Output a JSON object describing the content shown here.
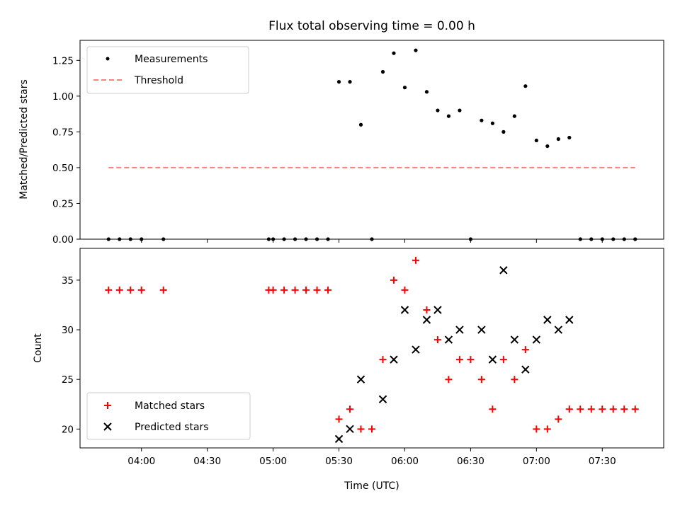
{
  "chart_data": [
    {
      "type": "scatter",
      "title": "Flux total observing time = 0.00 h",
      "ylabel": "Matched/Predicted stars",
      "xlabel": "",
      "xlim": [
        "03:32",
        "07:58"
      ],
      "ylim": [
        0,
        1.39
      ],
      "yticks": [
        "0.00",
        "0.25",
        "0.50",
        "0.75",
        "1.00",
        "1.25"
      ],
      "grid": false,
      "legend_position": "top-left",
      "series": [
        {
          "name": "Measurements",
          "marker": "dot",
          "color": "#000000",
          "points": [
            [
              "03:45",
              0
            ],
            [
              "03:50",
              0
            ],
            [
              "03:55",
              0
            ],
            [
              "04:00",
              0
            ],
            [
              "04:10",
              0
            ],
            [
              "04:58",
              0
            ],
            [
              "05:00",
              0
            ],
            [
              "05:05",
              0
            ],
            [
              "05:10",
              0
            ],
            [
              "05:15",
              0
            ],
            [
              "05:20",
              0
            ],
            [
              "05:25",
              0
            ],
            [
              "05:30",
              1.1
            ],
            [
              "05:35",
              1.1
            ],
            [
              "05:40",
              0.8
            ],
            [
              "05:45",
              0
            ],
            [
              "05:50",
              1.17
            ],
            [
              "05:55",
              1.3
            ],
            [
              "06:00",
              1.06
            ],
            [
              "06:05",
              1.32
            ],
            [
              "06:10",
              1.03
            ],
            [
              "06:15",
              0.9
            ],
            [
              "06:20",
              0.86
            ],
            [
              "06:25",
              0.9
            ],
            [
              "06:30",
              0
            ],
            [
              "06:35",
              0.83
            ],
            [
              "06:40",
              0.81
            ],
            [
              "06:45",
              0.75
            ],
            [
              "06:50",
              0.86
            ],
            [
              "06:55",
              1.07
            ],
            [
              "07:00",
              0.69
            ],
            [
              "07:05",
              0.65
            ],
            [
              "07:10",
              0.7
            ],
            [
              "07:15",
              0.71
            ],
            [
              "07:20",
              0
            ],
            [
              "07:25",
              0
            ],
            [
              "07:30",
              0
            ],
            [
              "07:35",
              0
            ],
            [
              "07:40",
              0
            ],
            [
              "07:45",
              0
            ]
          ]
        },
        {
          "name": "Threshold",
          "marker": "dashed-line",
          "color": "#ff7f7f",
          "points": [
            [
              "03:45",
              0.5
            ],
            [
              "07:45",
              0.5
            ]
          ]
        }
      ]
    },
    {
      "type": "scatter",
      "title": "",
      "ylabel": "Count",
      "xlabel": "Time (UTC)",
      "xlim": [
        "03:32",
        "07:58"
      ],
      "ylim": [
        18.1,
        38.2
      ],
      "yticks": [
        "20",
        "25",
        "30",
        "35"
      ],
      "xticks": [
        "04:00",
        "04:30",
        "05:00",
        "05:30",
        "06:00",
        "06:30",
        "07:00",
        "07:30"
      ],
      "grid": false,
      "legend_position": "bottom-left",
      "series": [
        {
          "name": "Matched stars",
          "marker": "plus",
          "color": "#ff0000",
          "points": [
            [
              "03:45",
              34
            ],
            [
              "03:50",
              34
            ],
            [
              "03:55",
              34
            ],
            [
              "04:00",
              34
            ],
            [
              "04:10",
              34
            ],
            [
              "04:58",
              34
            ],
            [
              "05:00",
              34
            ],
            [
              "05:05",
              34
            ],
            [
              "05:10",
              34
            ],
            [
              "05:15",
              34
            ],
            [
              "05:20",
              34
            ],
            [
              "05:25",
              34
            ],
            [
              "05:30",
              21
            ],
            [
              "05:35",
              22
            ],
            [
              "05:40",
              20
            ],
            [
              "05:45",
              20
            ],
            [
              "05:50",
              27
            ],
            [
              "05:55",
              35
            ],
            [
              "06:00",
              34
            ],
            [
              "06:05",
              37
            ],
            [
              "06:10",
              32
            ],
            [
              "06:15",
              29
            ],
            [
              "06:20",
              25
            ],
            [
              "06:25",
              27
            ],
            [
              "06:30",
              27
            ],
            [
              "06:35",
              25
            ],
            [
              "06:40",
              22
            ],
            [
              "06:45",
              27
            ],
            [
              "06:50",
              25
            ],
            [
              "06:55",
              28
            ],
            [
              "07:00",
              20
            ],
            [
              "07:05",
              20
            ],
            [
              "07:10",
              21
            ],
            [
              "07:15",
              22
            ],
            [
              "07:20",
              22
            ],
            [
              "07:25",
              22
            ],
            [
              "07:30",
              22
            ],
            [
              "07:35",
              22
            ],
            [
              "07:40",
              22
            ],
            [
              "07:45",
              22
            ]
          ]
        },
        {
          "name": "Predicted stars",
          "marker": "x",
          "color": "#000000",
          "points": [
            [
              "05:30",
              19
            ],
            [
              "05:35",
              20
            ],
            [
              "05:40",
              25
            ],
            [
              "05:50",
              23
            ],
            [
              "05:55",
              27
            ],
            [
              "06:00",
              32
            ],
            [
              "06:05",
              28
            ],
            [
              "06:10",
              31
            ],
            [
              "06:15",
              32
            ],
            [
              "06:20",
              29
            ],
            [
              "06:25",
              30
            ],
            [
              "06:35",
              30
            ],
            [
              "06:40",
              27
            ],
            [
              "06:45",
              36
            ],
            [
              "06:50",
              29
            ],
            [
              "06:55",
              26
            ],
            [
              "07:00",
              29
            ],
            [
              "07:05",
              31
            ],
            [
              "07:10",
              30
            ],
            [
              "07:15",
              31
            ]
          ]
        }
      ]
    }
  ]
}
